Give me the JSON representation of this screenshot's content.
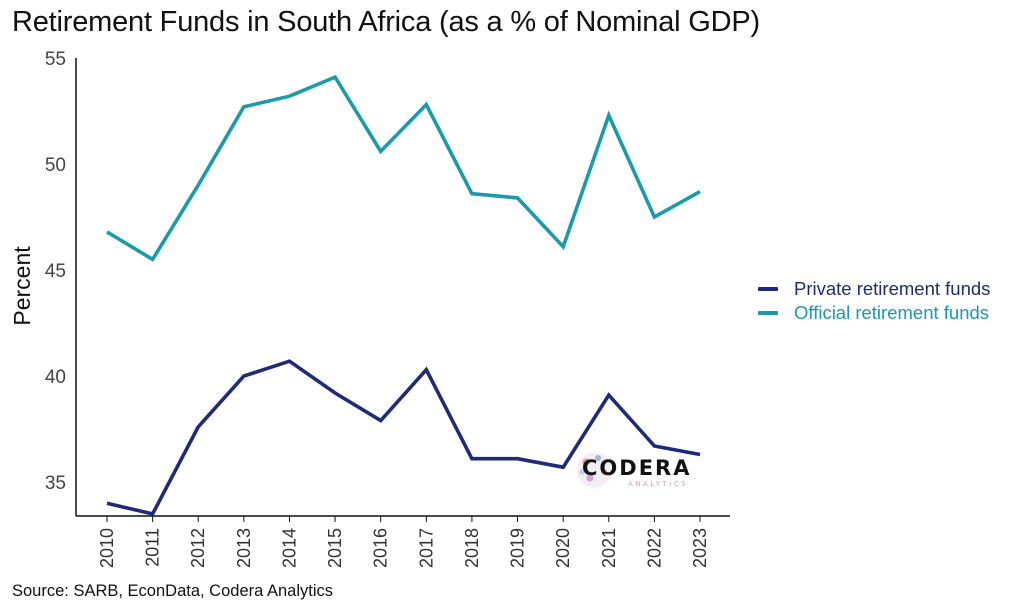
{
  "title": "Retirement Funds in South Africa (as a % of Nominal GDP)",
  "source": "Source: SARB, EconData, Codera Analytics",
  "watermark": {
    "word": "CODERA",
    "subword": "ANALYTICS"
  },
  "legend": [
    {
      "label": "Private retirement funds",
      "color": "#1f2a78"
    },
    {
      "label": "Official retirement funds",
      "color": "#1b9aaa"
    }
  ],
  "chart_data": {
    "type": "line",
    "title": "Retirement Funds in South Africa (as a % of Nominal GDP)",
    "xlabel": "",
    "ylabel": "Percent",
    "x": [
      "2010",
      "2011",
      "2012",
      "2013",
      "2014",
      "2015",
      "2016",
      "2017",
      "2018",
      "2019",
      "2020",
      "2021",
      "2022",
      "2023"
    ],
    "ylim": [
      33.4,
      55
    ],
    "yticks": [
      35,
      40,
      45,
      50,
      55
    ],
    "grid": false,
    "legend_position": "right",
    "series": [
      {
        "name": "Private retirement funds",
        "color": "#1f2a78",
        "values": [
          34.0,
          33.5,
          37.6,
          40.0,
          40.7,
          39.2,
          37.9,
          40.3,
          36.1,
          36.1,
          35.7,
          39.1,
          36.7,
          36.3
        ]
      },
      {
        "name": "Official retirement funds",
        "color": "#1b9aaa",
        "values": [
          46.8,
          45.5,
          49.0,
          52.7,
          53.2,
          54.1,
          50.6,
          52.8,
          48.6,
          48.4,
          46.1,
          52.3,
          47.5,
          48.7
        ]
      }
    ]
  }
}
